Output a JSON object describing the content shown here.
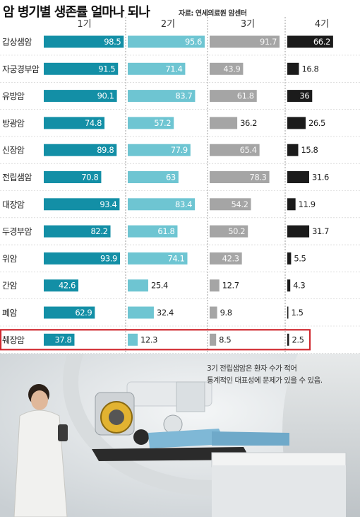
{
  "title": "암 병기별 생존률 얼마나 되나",
  "source": "자료: 연세의료원 암센터",
  "note": {
    "line1": "3기 전립샘암은 환자 수가 적어",
    "line2": "통계적인 대표성에 문제가 있을 수 있음."
  },
  "chart_data": {
    "type": "bar",
    "categories": [
      "갑상샘암",
      "자궁경부암",
      "유방암",
      "방광암",
      "신장암",
      "전립샘암",
      "대장암",
      "두경부암",
      "위암",
      "간암",
      "폐암",
      "췌장암"
    ],
    "series": [
      {
        "name": "1기",
        "values": [
          98.5,
          91.5,
          90.1,
          74.8,
          89.8,
          70.8,
          93.4,
          82.2,
          93.9,
          42.6,
          62.9,
          37.8
        ],
        "labels": [
          "98.5",
          "91.5",
          "90.1",
          "74.8",
          "89.8",
          "70.8",
          "93.4",
          "82.2",
          "93.9",
          "42.6",
          "62.9",
          "37.8"
        ],
        "color": "#138fa6"
      },
      {
        "name": "2기",
        "values": [
          95.6,
          71.4,
          83.7,
          57.2,
          77.9,
          63,
          83.4,
          61.8,
          74.1,
          25.4,
          32.4,
          12.3
        ],
        "labels": [
          "95.6",
          "71.4",
          "83.7",
          "57.2",
          "77.9",
          "63",
          "83.4",
          "61.8",
          "74.1",
          "25.4",
          "32.4",
          "12.3"
        ],
        "color": "#6ec5d2"
      },
      {
        "name": "3기",
        "values": [
          91.7,
          43.9,
          61.8,
          36.2,
          65.4,
          78.3,
          54.2,
          50.2,
          42.3,
          12.7,
          9.8,
          8.5
        ],
        "labels": [
          "91.7",
          "43.9",
          "61.8",
          "36.2",
          "65.4",
          "78.3",
          "54.2",
          "50.2",
          "42.3",
          "12.7",
          "9.8",
          "8.5"
        ],
        "color": "#a5a5a5"
      },
      {
        "name": "4기",
        "values": [
          66.2,
          16.8,
          36,
          26.5,
          15.8,
          31.6,
          11.9,
          31.7,
          5.5,
          4.3,
          1.5,
          2.5
        ],
        "labels": [
          "66.2",
          "16.8",
          "36",
          "26.5",
          "15.8",
          "31.6",
          "11.9",
          "31.7",
          "5.5",
          "4.3",
          "1.5",
          "2.5"
        ],
        "color": "#1b1b1b"
      }
    ],
    "highlight_category": "췌장암",
    "highlight_color": "#d0282f",
    "ylim": [
      0,
      100
    ],
    "grid": false,
    "legend": "column headers at top"
  }
}
